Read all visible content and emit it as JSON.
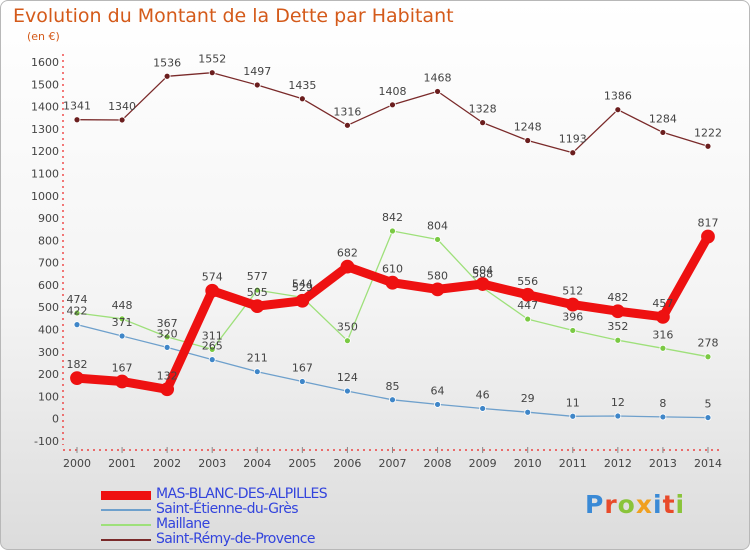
{
  "title": "Evolution du Montant de la Dette par Habitant",
  "unit_label": "(en €)",
  "logo": {
    "text": "Proxiti",
    "letter_colors": [
      "#3a8ad6",
      "#e84a2a",
      "#8ac43a",
      "#f0a020",
      "#3a8ad6",
      "#e84a2a",
      "#8ac43a"
    ]
  },
  "chart_data": {
    "type": "line",
    "categories": [
      "2000",
      "2001",
      "2002",
      "2003",
      "2004",
      "2005",
      "2006",
      "2007",
      "2008",
      "2009",
      "2010",
      "2011",
      "2012",
      "2013",
      "2014"
    ],
    "ylim": [
      -100,
      1600
    ],
    "yticks": [
      -100,
      0,
      100,
      200,
      300,
      400,
      500,
      600,
      700,
      800,
      900,
      1000,
      1100,
      1200,
      1300,
      1400,
      1500,
      1600
    ],
    "grid": false,
    "legend_position": "bottom-left",
    "series": [
      {
        "name": "MAS-BLANC-DES-ALPILLES",
        "color": "#ee1111",
        "marker_color": "#ee1111",
        "label_color": "#444444",
        "legend_color": "#3344dd",
        "values": [
          182,
          167,
          132,
          574,
          505,
          529,
          682,
          610,
          580,
          604,
          556,
          512,
          482,
          457,
          817
        ]
      },
      {
        "name": "Saint-Étienne-du-Grès",
        "color": "#6ea0cc",
        "marker_color": "#3f86c8",
        "label_color": "#444444",
        "legend_color": "#3344dd",
        "values": [
          422,
          371,
          320,
          265,
          211,
          167,
          124,
          85,
          64,
          46,
          29,
          11,
          12,
          8,
          5
        ]
      },
      {
        "name": "Maillane",
        "color": "#9ee07a",
        "marker_color": "#7ac943",
        "label_color": "#444444",
        "legend_color": "#3344dd",
        "values": [
          474,
          448,
          367,
          311,
          577,
          544,
          350,
          842,
          804,
          588,
          447,
          396,
          352,
          316,
          278
        ]
      },
      {
        "name": "Saint-Rémy-de-Provence",
        "color": "#7a2a2a",
        "marker_color": "#6b1e1e",
        "label_color": "#444444",
        "legend_color": "#3344dd",
        "values": [
          1341,
          1340,
          1536,
          1552,
          1497,
          1435,
          1316,
          1408,
          1468,
          1328,
          1248,
          1193,
          1386,
          1284,
          1222
        ]
      }
    ]
  }
}
